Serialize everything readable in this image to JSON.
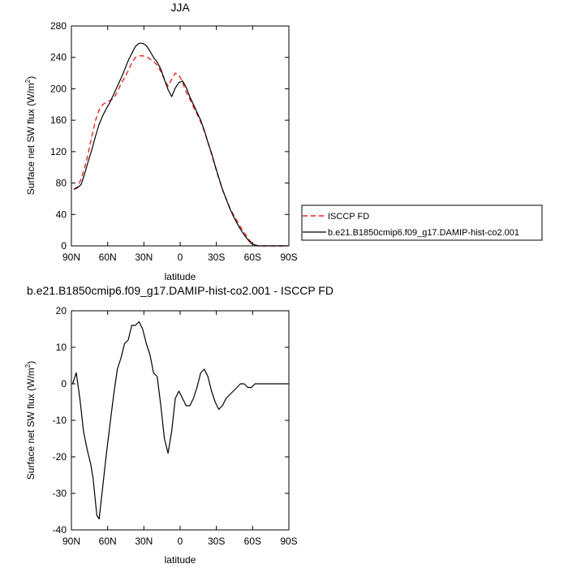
{
  "chart_data": [
    {
      "type": "line",
      "title": "JJA",
      "xlabel": "latitude",
      "ylabel": "Surface net SW flux (W/m",
      "ylabel_sup": "2",
      "ylabel_tail": ")",
      "xlim": [
        90,
        -90
      ],
      "ylim": [
        0,
        280
      ],
      "xticks": [
        90,
        60,
        30,
        0,
        -30,
        -60,
        -90
      ],
      "xtick_labels": [
        "90N",
        "60N",
        "30N",
        "0",
        "30S",
        "60S",
        "90S"
      ],
      "yticks": [
        0,
        40,
        80,
        120,
        160,
        200,
        240,
        280
      ],
      "ytick_labels": [
        "0",
        "40",
        "80",
        "120",
        "160",
        "200",
        "240",
        "280"
      ],
      "legend_position": "right",
      "series": [
        {
          "name": "ISCCP FD",
          "color": "#e8221f",
          "dash": "dashed",
          "x": [
            88,
            85,
            82,
            79,
            76,
            73,
            70,
            67,
            64,
            61,
            58,
            55,
            52,
            49,
            46,
            43,
            40,
            37,
            34,
            31,
            28,
            25,
            22,
            19,
            16,
            13,
            10,
            7,
            4,
            1,
            -2,
            -5,
            -8,
            -11,
            -14,
            -17,
            -20,
            -23,
            -26,
            -29,
            -32,
            -35,
            -38,
            -41,
            -44,
            -47,
            -50,
            -53,
            -56,
            -59,
            -62,
            -65,
            -68,
            -71,
            -74,
            -77,
            -80,
            -83,
            -86,
            -89
          ],
          "y": [
            72,
            75,
            85,
            100,
            118,
            140,
            160,
            173,
            180,
            183,
            185,
            188,
            196,
            206,
            214,
            223,
            233,
            240,
            242,
            242,
            241,
            238,
            235,
            230,
            222,
            212,
            203,
            212,
            220,
            218,
            208,
            196,
            187,
            177,
            168,
            158,
            146,
            132,
            117,
            101,
            86,
            72,
            60,
            49,
            40,
            32,
            24,
            17,
            10,
            4,
            1,
            0,
            0,
            0,
            0,
            0,
            0,
            0,
            0,
            0
          ]
        },
        {
          "name": "b.e21.B1850cmip6.f09_g17.DAMIP-hist-co2.001",
          "color": "#000000",
          "dash": "solid",
          "x": [
            88,
            85,
            82,
            79,
            76,
            73,
            70,
            67,
            64,
            61,
            58,
            55,
            52,
            49,
            46,
            43,
            40,
            37,
            34,
            31,
            28,
            25,
            22,
            19,
            16,
            13,
            10,
            7,
            4,
            1,
            -2,
            -5,
            -8,
            -11,
            -14,
            -17,
            -20,
            -23,
            -26,
            -29,
            -32,
            -35,
            -38,
            -41,
            -44,
            -47,
            -50,
            -53,
            -56,
            -59,
            -62,
            -65,
            -68,
            -71,
            -74,
            -77,
            -80,
            -83,
            -86,
            -89
          ],
          "y": [
            72,
            74,
            78,
            92,
            108,
            123,
            140,
            155,
            166,
            175,
            183,
            193,
            203,
            213,
            224,
            236,
            245,
            254,
            258,
            258,
            255,
            248,
            240,
            234,
            225,
            212,
            199,
            190,
            201,
            208,
            210,
            202,
            190,
            180,
            170,
            160,
            147,
            132,
            118,
            102,
            87,
            72,
            60,
            48,
            38,
            29,
            21,
            14,
            8,
            3,
            1,
            0,
            0,
            0,
            0,
            0,
            0,
            0,
            0,
            0
          ]
        }
      ]
    },
    {
      "type": "line",
      "title": "b.e21.B1850cmip6.f09_g17.DAMIP-hist-co2.001 - ISCCP FD",
      "xlabel": "latitude",
      "ylabel": "Surface net SW flux (W/m",
      "ylabel_sup": "2",
      "ylabel_tail": ")",
      "xlim": [
        90,
        -90
      ],
      "ylim": [
        -40,
        20
      ],
      "xticks": [
        90,
        60,
        30,
        0,
        -30,
        -60,
        -90
      ],
      "xtick_labels": [
        "90N",
        "60N",
        "30N",
        "0",
        "30S",
        "60S",
        "90S"
      ],
      "yticks": [
        -40,
        -30,
        -20,
        -10,
        0,
        10,
        20
      ],
      "ytick_labels": [
        "-40",
        "-30",
        "-20",
        "-10",
        "0",
        "10",
        "20"
      ],
      "series": [
        {
          "color": "#000000",
          "dash": "solid",
          "x": [
            89,
            86,
            83,
            80,
            77,
            74,
            72,
            69,
            67,
            64,
            61,
            58,
            55,
            52,
            49,
            46,
            43,
            40,
            37,
            34,
            31,
            28,
            25,
            22,
            19,
            16,
            13,
            10,
            7,
            4,
            1,
            -2,
            -5,
            -8,
            -11,
            -14,
            -17,
            -20,
            -23,
            -26,
            -29,
            -32,
            -35,
            -38,
            -41,
            -44,
            -47,
            -50,
            -53,
            -56,
            -59,
            -62,
            -65,
            -68,
            -71,
            -74,
            -77,
            -80,
            -83,
            -86,
            -89
          ],
          "y": [
            0,
            3,
            -4,
            -13,
            -18,
            -22,
            -26,
            -36,
            -37,
            -28,
            -19,
            -11,
            -3,
            4,
            7,
            11,
            12,
            16,
            16,
            17,
            15,
            11,
            8,
            3,
            2,
            -6,
            -15,
            -19,
            -13,
            -4,
            -2,
            -4,
            -6,
            -6,
            -4,
            -1,
            3,
            4,
            2,
            -2,
            -5,
            -7,
            -6,
            -4,
            -3,
            -2,
            -1,
            0,
            0,
            -1,
            -1,
            0,
            0,
            0,
            0,
            0,
            0,
            0,
            0,
            0,
            0
          ]
        }
      ]
    }
  ]
}
